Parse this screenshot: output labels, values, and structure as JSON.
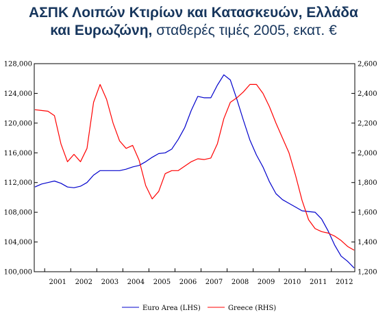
{
  "chart_data": {
    "type": "line",
    "title": "ΑΣΠΚ Λοιπών Κτιρίων και Κατασκευών, Ελλάδα",
    "title_line2_bold": "και Ευρωζώνη,",
    "title_line2_rest": " σταθερές τιμές 2005, εκατ. €",
    "x_tick_labels": [
      "2001",
      "2002",
      "2003",
      "2004",
      "2005",
      "2006",
      "2007",
      "2008",
      "2009",
      "2010",
      "2011",
      "2012"
    ],
    "xlim": [
      2000.6,
      2012.9
    ],
    "y_left": {
      "ylim": [
        100000,
        128000
      ],
      "tick_values": [
        100000,
        104000,
        108000,
        112000,
        116000,
        120000,
        124000,
        128000
      ],
      "tick_labels": [
        "100,000",
        "104,000",
        "108,000",
        "112,000",
        "116,000",
        "120,000",
        "124,000",
        "128,000"
      ]
    },
    "y_right": {
      "ylim": [
        1200,
        2600
      ],
      "tick_values": [
        1200,
        1400,
        1600,
        1800,
        2000,
        2200,
        2400,
        2600
      ],
      "tick_labels": [
        "1,200",
        "1,400",
        "1,600",
        "1,800",
        "2,000",
        "2,200",
        "2,400",
        "2,600"
      ]
    },
    "grid": false,
    "legend_position": "bottom",
    "series": [
      {
        "name": "Euro Area (LHS)",
        "axis": "left",
        "color": "#0000cc",
        "x": [
          2000.625,
          2000.875,
          2001.125,
          2001.375,
          2001.625,
          2001.875,
          2002.125,
          2002.375,
          2002.625,
          2002.875,
          2003.125,
          2003.375,
          2003.625,
          2003.875,
          2004.125,
          2004.375,
          2004.625,
          2004.875,
          2005.125,
          2005.375,
          2005.625,
          2005.875,
          2006.125,
          2006.375,
          2006.625,
          2006.875,
          2007.125,
          2007.375,
          2007.625,
          2007.875,
          2008.125,
          2008.375,
          2008.625,
          2008.875,
          2009.125,
          2009.375,
          2009.625,
          2009.875,
          2010.125,
          2010.375,
          2010.625,
          2010.875,
          2011.125,
          2011.375,
          2011.625,
          2011.875,
          2012.125,
          2012.375,
          2012.625,
          2012.875
        ],
        "y": [
          111400,
          111800,
          112000,
          112200,
          111900,
          111400,
          111300,
          111500,
          112000,
          113000,
          113600,
          113600,
          113600,
          113600,
          113800,
          114100,
          114300,
          114800,
          115400,
          115900,
          116000,
          116500,
          117800,
          119400,
          121700,
          123600,
          123400,
          123400,
          125100,
          126500,
          125800,
          123200,
          120400,
          117700,
          115700,
          114100,
          112100,
          110500,
          109700,
          109200,
          108700,
          108200,
          108100,
          108000,
          107100,
          105500,
          103600,
          102100,
          101400,
          100500
        ]
      },
      {
        "name": "Greece (RHS)",
        "axis": "right",
        "color": "#ff0000",
        "x": [
          2000.625,
          2000.875,
          2001.125,
          2001.375,
          2001.625,
          2001.875,
          2002.125,
          2002.375,
          2002.625,
          2002.875,
          2003.125,
          2003.375,
          2003.625,
          2003.875,
          2004.125,
          2004.375,
          2004.625,
          2004.875,
          2005.125,
          2005.375,
          2005.625,
          2005.875,
          2006.125,
          2006.375,
          2006.625,
          2006.875,
          2007.125,
          2007.375,
          2007.625,
          2007.875,
          2008.125,
          2008.375,
          2008.625,
          2008.875,
          2009.125,
          2009.375,
          2009.625,
          2009.875,
          2010.125,
          2010.375,
          2010.625,
          2010.875,
          2011.125,
          2011.375,
          2011.625,
          2011.875,
          2012.125,
          2012.375,
          2012.625,
          2012.875
        ],
        "y": [
          2290,
          2285,
          2280,
          2250,
          2060,
          1940,
          1990,
          1940,
          2030,
          2340,
          2460,
          2360,
          2200,
          2080,
          2030,
          2050,
          1950,
          1780,
          1690,
          1740,
          1860,
          1880,
          1880,
          1910,
          1940,
          1960,
          1955,
          1965,
          2060,
          2230,
          2340,
          2370,
          2410,
          2460,
          2460,
          2400,
          2310,
          2200,
          2100,
          2000,
          1850,
          1680,
          1550,
          1490,
          1470,
          1460,
          1440,
          1410,
          1370,
          1345
        ]
      }
    ]
  }
}
